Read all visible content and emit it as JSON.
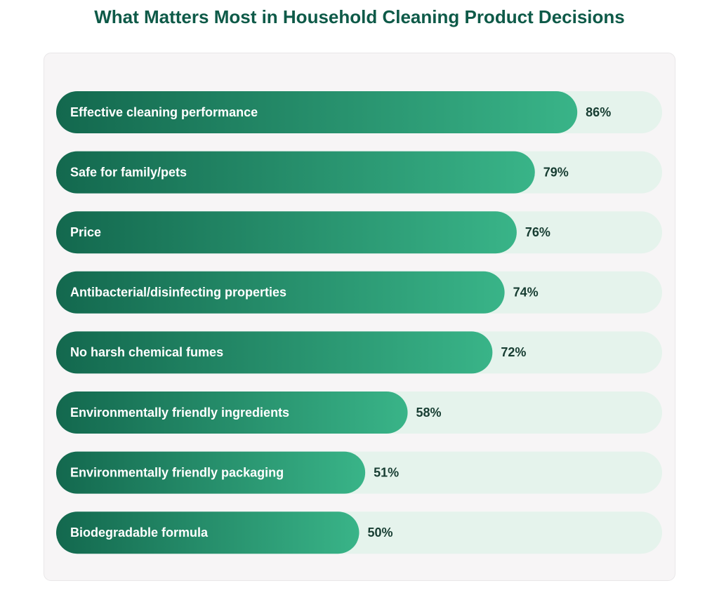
{
  "chart_data": {
    "type": "bar",
    "orientation": "horizontal",
    "title": "What Matters Most in Household Cleaning Product Decisions",
    "categories": [
      "Effective cleaning performance",
      "Safe for family/pets",
      "Price",
      "Antibacterial/disinfecting properties",
      "No harsh chemical fumes",
      "Environmentally friendly ingredients",
      "Environmentally friendly packaging",
      "Biodegradable formula"
    ],
    "values": [
      86,
      79,
      76,
      74,
      72,
      58,
      51,
      50
    ],
    "value_labels": [
      "86%",
      "79%",
      "76%",
      "74%",
      "72%",
      "58%",
      "51%",
      "50%"
    ],
    "xlim": [
      0,
      100
    ],
    "color": [
      "#13684e",
      "#39b488"
    ],
    "track_color": "#e5f3ec"
  }
}
